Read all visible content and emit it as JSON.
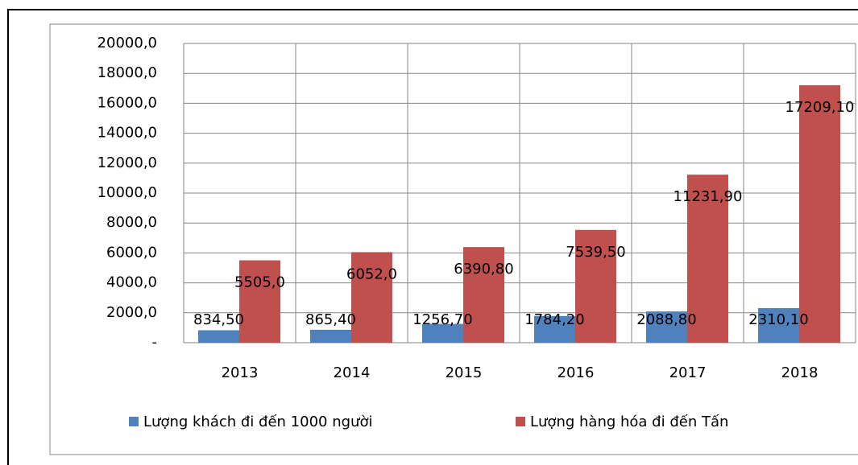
{
  "chart_data": {
    "type": "bar",
    "categories": [
      "2013",
      "2014",
      "2015",
      "2016",
      "2017",
      "2018"
    ],
    "series": [
      {
        "name": "Lượng khách đi đến 1000 người",
        "color": "#4f81bd",
        "values": [
          834.5,
          865.4,
          1256.7,
          1784.2,
          2088.8,
          2310.1
        ],
        "value_labels": [
          "834,50",
          "865,40",
          "1256,70",
          "1784,20",
          "2088,80",
          "2310,10"
        ]
      },
      {
        "name": "Lượng hàng hóa đi đến Tấn",
        "color": "#c0504d",
        "values": [
          5505.0,
          6052.0,
          6390.8,
          7539.5,
          11231.9,
          17209.1
        ],
        "value_labels": [
          "5505,0",
          "6052,0",
          "6390,80",
          "7539,50",
          "11231,90",
          "17209,10"
        ]
      }
    ],
    "ylim": [
      0,
      20000
    ],
    "yticks": [
      {
        "value": 0,
        "label": "-"
      },
      {
        "value": 2000,
        "label": "2000,0"
      },
      {
        "value": 4000,
        "label": "4000,0"
      },
      {
        "value": 6000,
        "label": "6000,0"
      },
      {
        "value": 8000,
        "label": "8000,0"
      },
      {
        "value": 10000,
        "label": "10000,0"
      },
      {
        "value": 12000,
        "label": "12000,0"
      },
      {
        "value": 14000,
        "label": "14000,0"
      },
      {
        "value": 16000,
        "label": "16000,0"
      },
      {
        "value": 18000,
        "label": "18000,0"
      },
      {
        "value": 20000,
        "label": "20000,0"
      }
    ],
    "grid": true,
    "legend": "bottom"
  }
}
